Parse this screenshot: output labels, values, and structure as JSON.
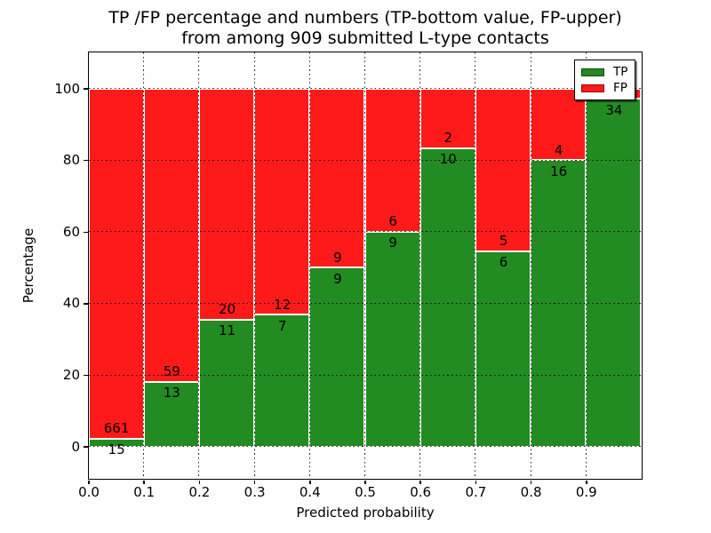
{
  "figure": {
    "title_line1": "TP /FP percentage and numbers (TP-bottom value, FP-upper)",
    "title_line2": "from among 909 submitted L-type contacts"
  },
  "axes": {
    "xlabel": "Predicted probability",
    "ylabel": "Percentage",
    "x_tick_labels": [
      "0.0",
      "0.1",
      "0.2",
      "0.3",
      "0.4",
      "0.5",
      "0.6",
      "0.7",
      "0.8",
      "0.9"
    ],
    "y_tick_labels": [
      "0",
      "20",
      "40",
      "60",
      "80",
      "100"
    ],
    "y_tick_values": [
      0,
      20,
      40,
      60,
      80,
      100
    ],
    "xlim": [
      0.0,
      1.0
    ],
    "ylim_drawn": [
      -8.9,
      110.2
    ],
    "grid_style": "dotted"
  },
  "legend": {
    "position": "upper-right",
    "entries": [
      {
        "label": "TP",
        "color": "#228b22"
      },
      {
        "label": "FP",
        "color": "#ff1a1a"
      }
    ]
  },
  "chart_data": {
    "type": "bar",
    "subtype": "stacked-100-percent",
    "title": "TP /FP percentage and numbers (TP-bottom value, FP-upper) from among 909 submitted L-type contacts",
    "xlabel": "Predicted probability",
    "ylabel": "Percentage",
    "total_submitted": 909,
    "stack_total_pct": 100,
    "colors": {
      "TP": "#228b22",
      "FP": "#ff1a1a"
    },
    "bar_edge_color": "#ffffff",
    "bins": [
      {
        "range": "0.0-0.1",
        "tp": 15,
        "fp": 661,
        "tp_pct": 2.2
      },
      {
        "range": "0.1-0.2",
        "tp": 13,
        "fp": 59,
        "tp_pct": 18.1
      },
      {
        "range": "0.2-0.3",
        "tp": 11,
        "fp": 20,
        "tp_pct": 35.5
      },
      {
        "range": "0.3-0.4",
        "tp": 7,
        "fp": 12,
        "tp_pct": 36.8
      },
      {
        "range": "0.4-0.5",
        "tp": 9,
        "fp": 9,
        "tp_pct": 50.0
      },
      {
        "range": "0.5-0.6",
        "tp": 9,
        "fp": 6,
        "tp_pct": 60.0
      },
      {
        "range": "0.6-0.7",
        "tp": 10,
        "fp": 2,
        "tp_pct": 83.3
      },
      {
        "range": "0.7-0.8",
        "tp": 6,
        "fp": 5,
        "tp_pct": 54.5
      },
      {
        "range": "0.8-0.9",
        "tp": 16,
        "fp": 4,
        "tp_pct": 80.0
      },
      {
        "range": "0.9-1.0",
        "tp": 34,
        "fp": null,
        "tp_pct": 97.1
      }
    ],
    "note_fp_label_last_bin_hidden_by_legend": true
  }
}
